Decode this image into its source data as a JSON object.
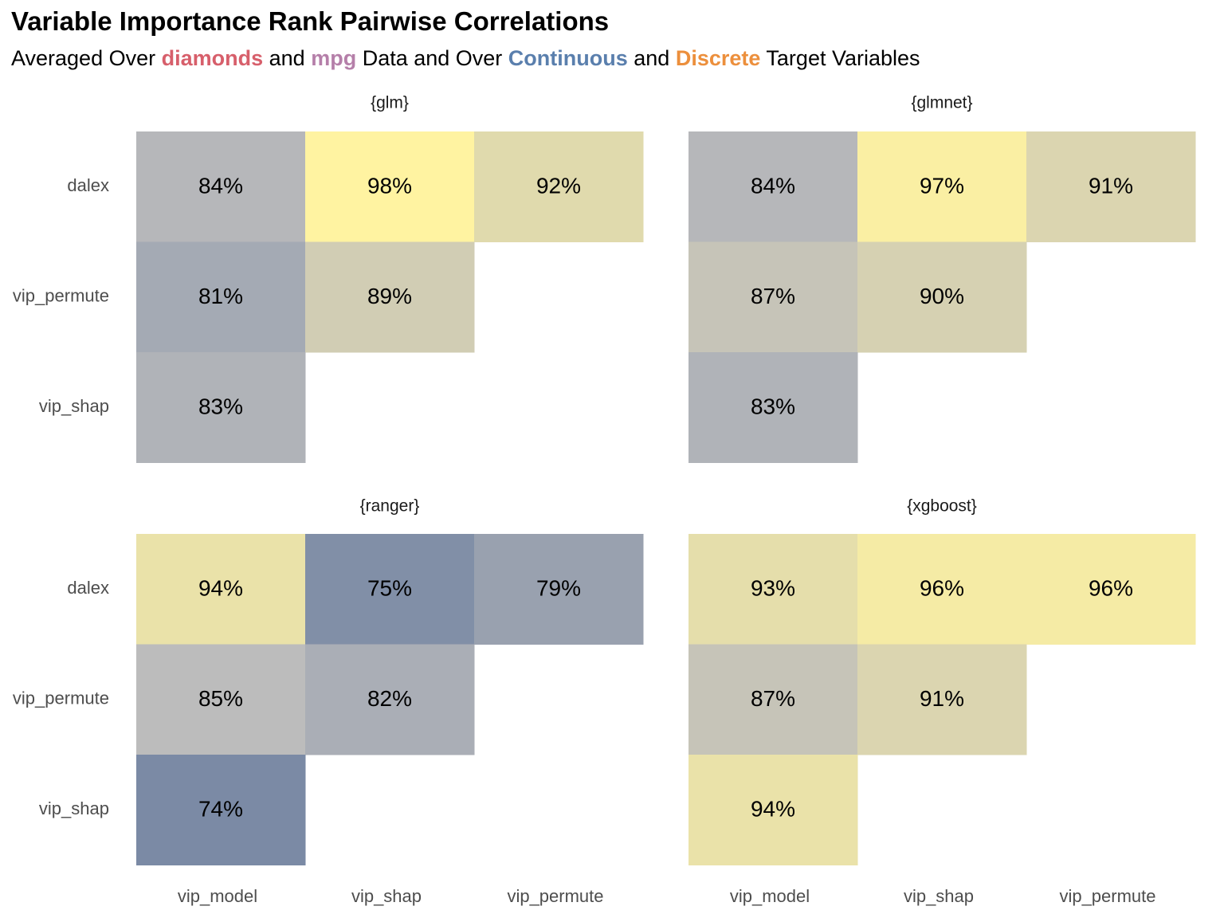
{
  "title": "Variable Importance Rank Pairwise Correlations",
  "subtitle": {
    "t1": "Averaged Over ",
    "h1": "diamonds",
    "t2": " and ",
    "h2": "mpg",
    "t3": " Data and Over ",
    "h3": "Continuous",
    "t4": " and ",
    "h4": "Discrete",
    "t5": " Target Variables"
  },
  "colors": {
    "diamonds": "#d75f6b",
    "mpg": "#b57fa9",
    "continuous": "#5a7fad",
    "discrete": "#ec8f3c",
    "scale_low": "#7b8aa5",
    "scale_mid": "#bcbcbc",
    "scale_high": "#fff3a1"
  },
  "chart_data": {
    "type": "heatmap",
    "x_categories": [
      "vip_model",
      "vip_shap",
      "vip_permute"
    ],
    "y_categories": [
      "dalex",
      "vip_permute",
      "vip_shap"
    ],
    "value_format": "percent",
    "panels": [
      {
        "name": "{glm}",
        "cells": [
          {
            "x": "vip_model",
            "y": "dalex",
            "value": 84,
            "label": "84%"
          },
          {
            "x": "vip_shap",
            "y": "dalex",
            "value": 98,
            "label": "98%"
          },
          {
            "x": "vip_permute",
            "y": "dalex",
            "value": 92,
            "label": "92%"
          },
          {
            "x": "vip_model",
            "y": "vip_permute",
            "value": 81,
            "label": "81%"
          },
          {
            "x": "vip_shap",
            "y": "vip_permute",
            "value": 89,
            "label": "89%"
          },
          {
            "x": "vip_model",
            "y": "vip_shap",
            "value": 83,
            "label": "83%"
          }
        ]
      },
      {
        "name": "{glmnet}",
        "cells": [
          {
            "x": "vip_model",
            "y": "dalex",
            "value": 84,
            "label": "84%"
          },
          {
            "x": "vip_shap",
            "y": "dalex",
            "value": 97,
            "label": "97%"
          },
          {
            "x": "vip_permute",
            "y": "dalex",
            "value": 91,
            "label": "91%"
          },
          {
            "x": "vip_model",
            "y": "vip_permute",
            "value": 87,
            "label": "87%"
          },
          {
            "x": "vip_shap",
            "y": "vip_permute",
            "value": 90,
            "label": "90%"
          },
          {
            "x": "vip_model",
            "y": "vip_shap",
            "value": 83,
            "label": "83%"
          }
        ]
      },
      {
        "name": "{ranger}",
        "cells": [
          {
            "x": "vip_model",
            "y": "dalex",
            "value": 94,
            "label": "94%"
          },
          {
            "x": "vip_shap",
            "y": "dalex",
            "value": 75,
            "label": "75%"
          },
          {
            "x": "vip_permute",
            "y": "dalex",
            "value": 79,
            "label": "79%"
          },
          {
            "x": "vip_model",
            "y": "vip_permute",
            "value": 85,
            "label": "85%"
          },
          {
            "x": "vip_shap",
            "y": "vip_permute",
            "value": 82,
            "label": "82%"
          },
          {
            "x": "vip_model",
            "y": "vip_shap",
            "value": 74,
            "label": "74%"
          }
        ]
      },
      {
        "name": "{xgboost}",
        "cells": [
          {
            "x": "vip_model",
            "y": "dalex",
            "value": 93,
            "label": "93%"
          },
          {
            "x": "vip_shap",
            "y": "dalex",
            "value": 96,
            "label": "96%"
          },
          {
            "x": "vip_permute",
            "y": "dalex",
            "value": 96,
            "label": "96%"
          },
          {
            "x": "vip_model",
            "y": "vip_permute",
            "value": 87,
            "label": "87%"
          },
          {
            "x": "vip_shap",
            "y": "vip_permute",
            "value": 91,
            "label": "91%"
          },
          {
            "x": "vip_model",
            "y": "vip_shap",
            "value": 94,
            "label": "94%"
          }
        ]
      }
    ]
  }
}
